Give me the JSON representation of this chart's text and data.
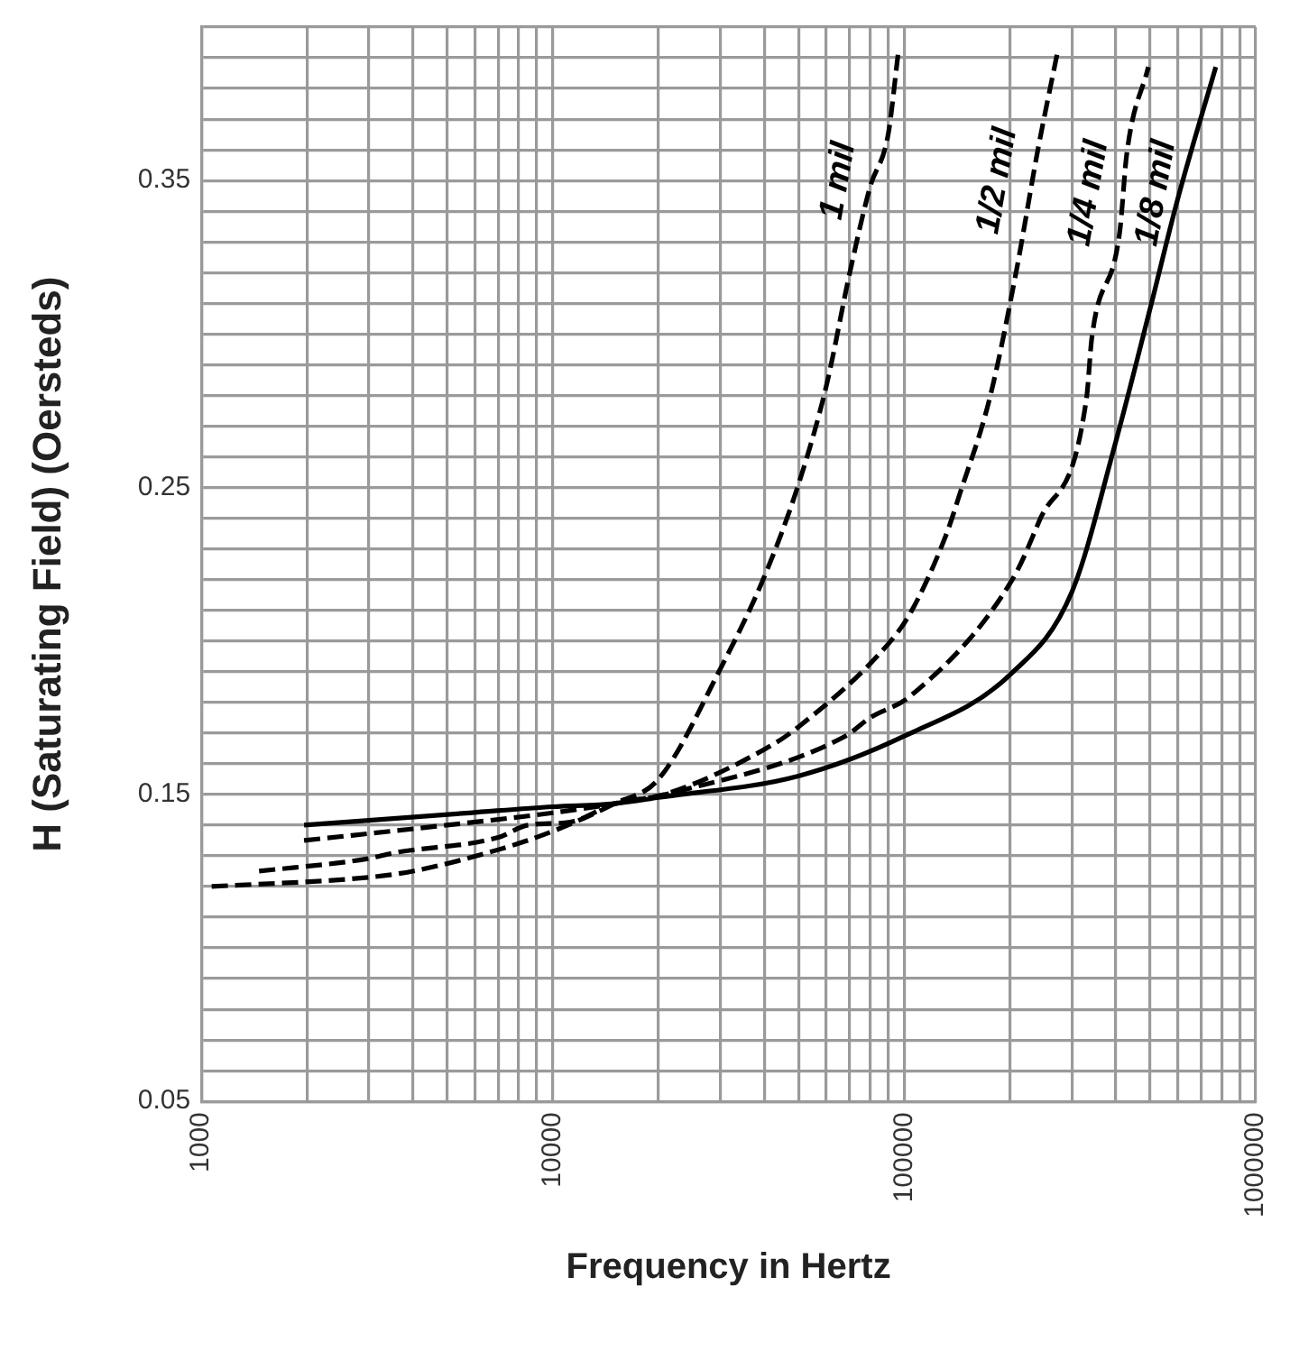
{
  "chart_data": {
    "type": "line",
    "xlabel": "Frequency in Hertz",
    "ylabel": "H (Saturating Field) (Oersteds)",
    "log": "x",
    "grid": true,
    "legend": false,
    "marker": "none",
    "xlim": [
      1000,
      1000000
    ],
    "ylim": [
      0.05,
      0.4
    ],
    "xticks": [
      1000,
      {
        "value": 2000,
        "label": null
      },
      {
        "value": 3000,
        "label": null
      },
      {
        "value": 4000,
        "label": null
      },
      {
        "value": 5000,
        "label": null
      },
      {
        "value": 6000,
        "label": null
      },
      {
        "value": 7000,
        "label": null
      },
      {
        "value": 8000,
        "label": null
      },
      {
        "value": 9000,
        "label": null
      },
      10000,
      {
        "value": 20000,
        "label": null
      },
      {
        "value": 30000,
        "label": null
      },
      {
        "value": 40000,
        "label": null
      },
      {
        "value": 50000,
        "label": null
      },
      {
        "value": 60000,
        "label": null
      },
      {
        "value": 70000,
        "label": null
      },
      {
        "value": 80000,
        "label": null
      },
      {
        "value": 90000,
        "label": null
      },
      100000,
      {
        "value": 200000,
        "label": null
      },
      {
        "value": 300000,
        "label": null
      },
      {
        "value": 400000,
        "label": null
      },
      {
        "value": 500000,
        "label": null
      },
      {
        "value": 600000,
        "label": null
      },
      {
        "value": 700000,
        "label": null
      },
      {
        "value": 800000,
        "label": null
      },
      {
        "value": 900000,
        "label": null
      },
      1000000
    ],
    "yticks": [
      0.05,
      {
        "value": 0.06,
        "label": null
      },
      {
        "value": 0.07,
        "label": null
      },
      {
        "value": 0.08,
        "label": null
      },
      {
        "value": 0.09,
        "label": null
      },
      {
        "value": 0.1,
        "label": null
      },
      {
        "value": 0.11,
        "label": null
      },
      {
        "value": 0.12,
        "label": null
      },
      {
        "value": 0.13,
        "label": null
      },
      {
        "value": 0.14,
        "label": null
      },
      0.15,
      {
        "value": 0.16,
        "label": null
      },
      {
        "value": 0.17,
        "label": null
      },
      {
        "value": 0.18,
        "label": null
      },
      {
        "value": 0.19,
        "label": null
      },
      {
        "value": 0.2,
        "label": null
      },
      {
        "value": 0.21,
        "label": null
      },
      {
        "value": 0.22,
        "label": null
      },
      {
        "value": 0.23,
        "label": null
      },
      {
        "value": 0.24,
        "label": null
      },
      0.25,
      {
        "value": 0.26,
        "label": null
      },
      {
        "value": 0.27,
        "label": null
      },
      {
        "value": 0.28,
        "label": null
      },
      {
        "value": 0.29,
        "label": null
      },
      {
        "value": 0.3,
        "label": null
      },
      {
        "value": 0.31,
        "label": null
      },
      {
        "value": 0.32,
        "label": null
      },
      {
        "value": 0.33,
        "label": null
      },
      {
        "value": 0.34,
        "label": null
      },
      0.35,
      {
        "value": 0.36,
        "label": null
      },
      {
        "value": 0.37,
        "label": null
      },
      {
        "value": 0.38,
        "label": null
      },
      {
        "value": 0.39,
        "label": null
      },
      {
        "value": 0.4,
        "label": null
      }
    ],
    "series": [
      {
        "name": "1 mil",
        "color": "#000000",
        "line_style": "dashed",
        "x": [
          1070,
          3000,
          4000,
          7000,
          10000,
          15000,
          20000,
          30000,
          40000,
          50000,
          60000,
          70000,
          80000,
          90000,
          96000
        ],
        "values": [
          0.12,
          0.123,
          0.125,
          0.132,
          0.138,
          0.147,
          0.155,
          0.191,
          0.221,
          0.251,
          0.283,
          0.32,
          0.348,
          0.365,
          0.391
        ]
      },
      {
        "name": "1/2 mil",
        "color": "#000000",
        "line_style": "dashed",
        "x": [
          1460,
          2950,
          3550,
          7000,
          8500,
          11200,
          15000,
          20800,
          40500,
          50000,
          90000,
          104000,
          131000,
          144000,
          175000,
          208000,
          240000,
          272000
        ],
        "values": [
          0.125,
          0.129,
          0.131,
          0.136,
          0.14,
          0.141,
          0.147,
          0.15,
          0.165,
          0.172,
          0.199,
          0.209,
          0.234,
          0.248,
          0.279,
          0.32,
          0.36,
          0.391
        ]
      },
      {
        "name": "1/4 mil",
        "color": "#000000",
        "line_style": "dashed",
        "x": [
          1960,
          5000,
          10000,
          15000,
          22700,
          68000,
          80000,
          104000,
          203000,
          242000,
          330000,
          342000,
          410000,
          430000,
          495000
        ],
        "values": [
          0.135,
          0.14,
          0.144,
          0.147,
          0.151,
          0.169,
          0.175,
          0.182,
          0.22,
          0.239,
          0.279,
          0.299,
          0.333,
          0.359,
          0.387
        ]
      },
      {
        "name": "1/8 mil",
        "color": "#000000",
        "line_style": "solid",
        "x": [
          1960,
          5800,
          10000,
          15000,
          20000,
          50000,
          100000,
          200000,
          300000,
          400000,
          500000,
          600000,
          770000
        ],
        "values": [
          0.14,
          0.144,
          0.146,
          0.147,
          0.149,
          0.156,
          0.169,
          0.189,
          0.216,
          0.265,
          0.308,
          0.344,
          0.387
        ]
      }
    ]
  }
}
